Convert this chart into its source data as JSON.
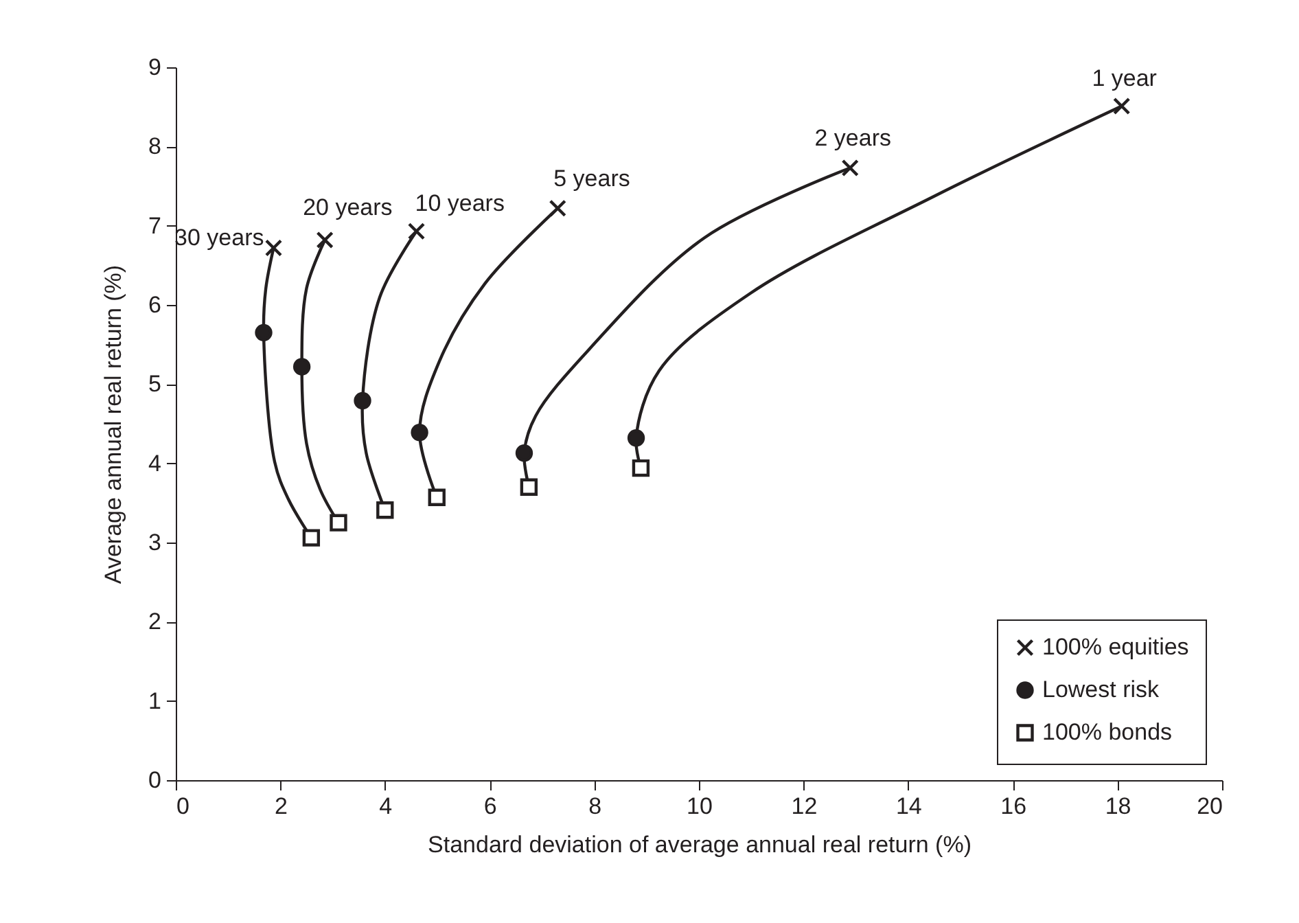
{
  "chart_data": {
    "type": "line",
    "xlabel": "Standard deviation of average annual real return (%)",
    "ylabel": "Average annual real return (%)",
    "xlim": [
      0,
      20
    ],
    "xticks": [
      0,
      2,
      4,
      6,
      8,
      10,
      12,
      14,
      16,
      18,
      20
    ],
    "ylim": [
      0,
      9
    ],
    "yticks": [
      0,
      1,
      2,
      3,
      4,
      5,
      6,
      7,
      8,
      9
    ],
    "grid": false,
    "legend": "bottom right",
    "series": [
      {
        "name": "30 years",
        "marker": "none",
        "color": "#231f20",
        "x": [
          1.87,
          1.72,
          1.68,
          1.89,
          2.15,
          2.59
        ],
        "values": [
          6.72,
          6.2,
          5.65,
          4.02,
          3.55,
          3.06
        ]
      },
      {
        "name": "20 years",
        "marker": "none",
        "color": "#231f20",
        "x": [
          2.85,
          2.5,
          2.41,
          2.5,
          2.76,
          3.11
        ],
        "values": [
          6.82,
          6.21,
          5.22,
          4.25,
          3.67,
          3.25
        ]
      },
      {
        "name": "10 years",
        "marker": "none",
        "color": "#231f20",
        "x": [
          4.6,
          3.9,
          3.57,
          3.64,
          4.0
        ],
        "values": [
          6.93,
          6.1,
          4.79,
          4.13,
          3.41
        ]
      },
      {
        "name": "5 years",
        "marker": "none",
        "color": "#231f20",
        "x": [
          7.3,
          5.91,
          5.04,
          4.66,
          4.99
        ],
        "values": [
          7.22,
          6.27,
          5.29,
          4.39,
          3.57
        ]
      },
      {
        "name": "2 years",
        "marker": "none",
        "color": "#231f20",
        "x": [
          12.89,
          10.11,
          7.93,
          6.88,
          6.66,
          6.75
        ],
        "values": [
          7.73,
          6.85,
          5.46,
          4.6,
          4.13,
          3.7
        ]
      },
      {
        "name": "1 year",
        "marker": "none",
        "color": "#231f20",
        "x": [
          18.08,
          14.49,
          10.99,
          9.24,
          8.8,
          8.89
        ],
        "values": [
          8.51,
          7.37,
          6.15,
          5.17,
          4.32,
          3.94
        ]
      },
      {
        "name": "100% equities",
        "type": "scatter",
        "marker": "cross",
        "color": "#231f20",
        "x": [
          1.87,
          2.85,
          4.6,
          7.3,
          12.89,
          18.08
        ],
        "values": [
          6.72,
          6.82,
          6.93,
          7.22,
          7.73,
          8.51
        ]
      },
      {
        "name": "Lowest risk",
        "type": "scatter",
        "marker": "circle",
        "color": "#231f20",
        "x": [
          1.68,
          2.41,
          3.57,
          4.66,
          6.66,
          8.8
        ],
        "values": [
          5.65,
          5.22,
          4.79,
          4.39,
          4.13,
          4.32
        ]
      },
      {
        "name": "100% bonds",
        "type": "scatter",
        "marker": "square",
        "color": "#231f20",
        "x": [
          2.59,
          3.11,
          4.0,
          4.99,
          6.75,
          8.89
        ],
        "values": [
          3.06,
          3.25,
          3.41,
          3.57,
          3.7,
          3.94
        ]
      }
    ]
  }
}
